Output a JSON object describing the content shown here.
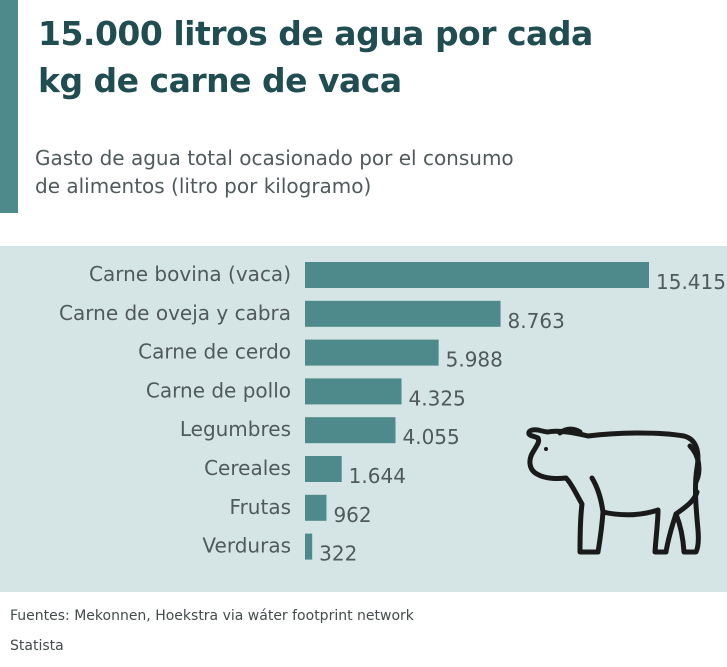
{
  "header": {
    "title_line1": "15.000 litros de agua por cada",
    "title_line2": "kg de carne de vaca",
    "subtitle_line1": "Gasto de agua total ocasionado por el consumo",
    "subtitle_line2": "de alimentos (litro por kilogramo)"
  },
  "colors": {
    "accent": "#4e8a8b",
    "title": "#1f4d52",
    "panel_bg": "#d5e4e4",
    "bar": "#4e8a8b",
    "label": "#505a5c"
  },
  "chart_data": {
    "type": "bar",
    "orientation": "horizontal",
    "categories": [
      "Carne bovina (vaca)",
      "Carne de oveja y cabra",
      "Carne de cerdo",
      "Carne de pollo",
      "Legumbres",
      "Cereales",
      "Frutas",
      "Verduras"
    ],
    "values": [
      15415,
      8763,
      5988,
      4325,
      4055,
      1644,
      962,
      322
    ],
    "value_labels": [
      "15.415",
      "8.763",
      "5.988",
      "4.325",
      "4.055",
      "1.644",
      "962",
      "322"
    ],
    "title": "",
    "xlabel": "",
    "ylabel": "",
    "grid": false,
    "icon": "cow-icon"
  },
  "footer": {
    "source": "Fuentes: Mekonnen, Hoekstra via wáter footprint network",
    "brand": "Statista"
  }
}
